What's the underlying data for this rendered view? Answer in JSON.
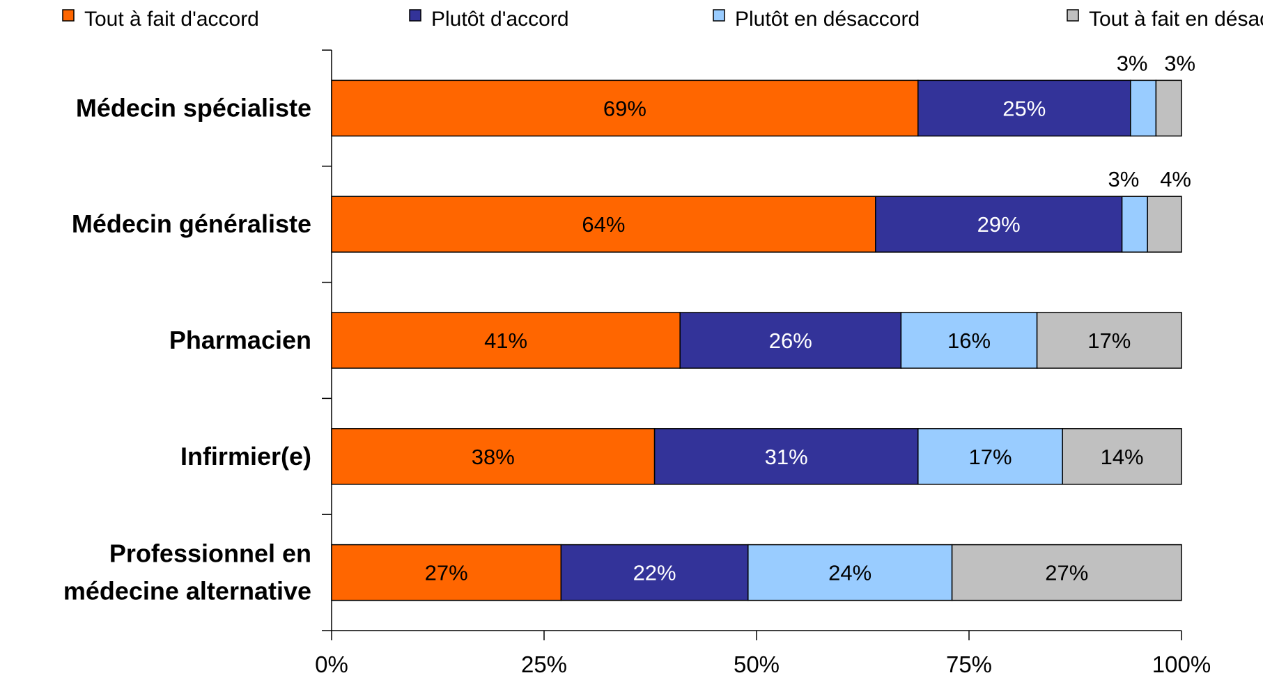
{
  "chart_data": {
    "type": "bar",
    "orientation": "horizontal",
    "stacked": true,
    "categories": [
      "Médecin spécialiste",
      "Médecin généraliste",
      "Pharmacien",
      "Infirmier(e)",
      "Professionnel en médecine alternative"
    ],
    "category_lines": [
      [
        "Médecin spécialiste"
      ],
      [
        "Médecin généraliste"
      ],
      [
        "Pharmacien"
      ],
      [
        "Infirmier(e)"
      ],
      [
        "Professionnel en",
        "médecine alternative"
      ]
    ],
    "series": [
      {
        "name": "Tout à fait d'accord",
        "color": "#FF6600",
        "label_color": "#000000",
        "values": [
          69,
          64,
          41,
          38,
          27
        ]
      },
      {
        "name": "Plutôt d'accord",
        "color": "#333399",
        "label_color": "#FFFFFF",
        "values": [
          25,
          29,
          26,
          31,
          22
        ]
      },
      {
        "name": "Plutôt en désaccord",
        "color": "#99CCFF",
        "label_color": "#000000",
        "values": [
          3,
          3,
          16,
          17,
          24
        ]
      },
      {
        "name": "Tout à fait en désaccord",
        "color": "#C0C0C0",
        "label_color": "#000000",
        "values": [
          3,
          4,
          17,
          14,
          27
        ]
      }
    ],
    "xlim": [
      0,
      100
    ],
    "xticks": [
      0,
      25,
      50,
      75,
      100
    ],
    "xtick_labels": [
      "0%",
      "25%",
      "50%",
      "75%",
      "100%"
    ],
    "value_suffix": "%",
    "legend_position": "top",
    "grid": false
  }
}
